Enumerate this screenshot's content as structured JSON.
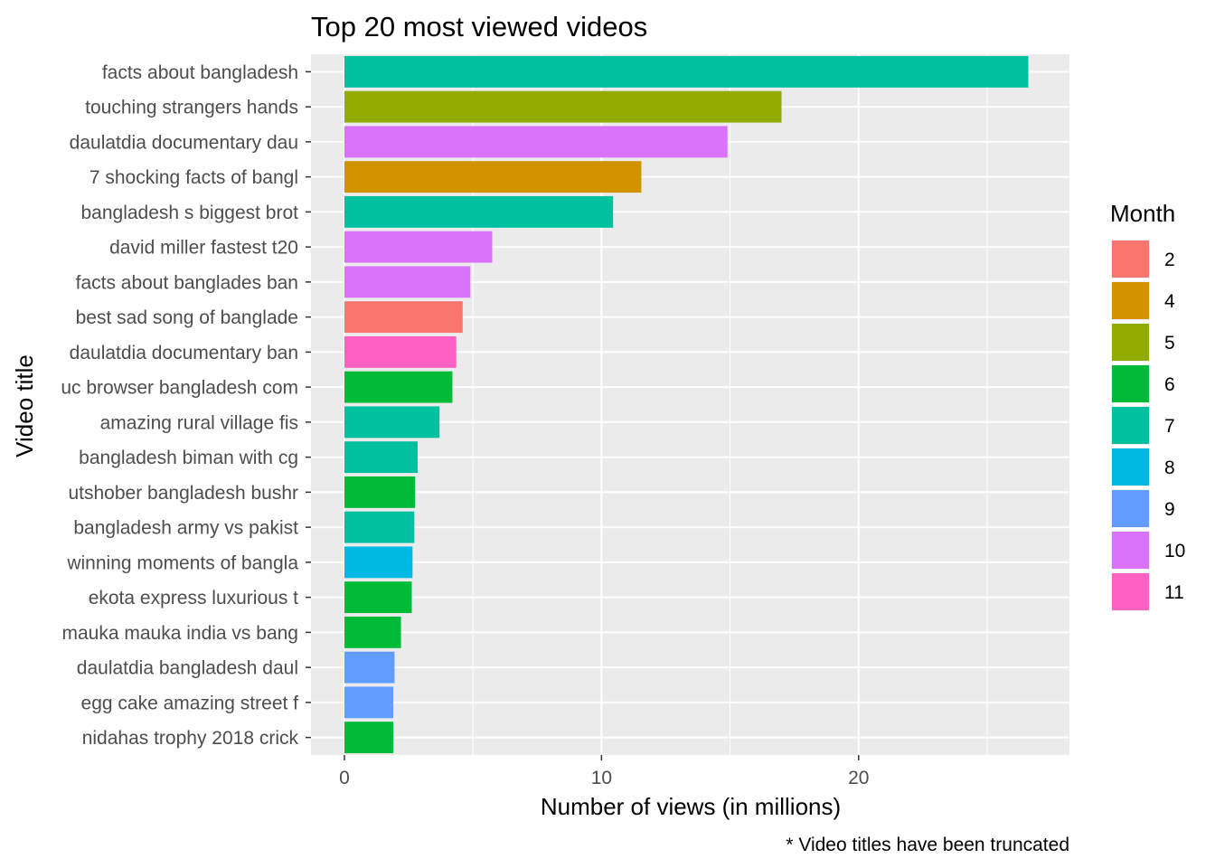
{
  "chart_data": {
    "type": "bar",
    "orientation": "horizontal",
    "title": "Top 20 most viewed videos",
    "xlabel": "Number of views (in millions)",
    "ylabel": "Video title",
    "caption": "* Video titles have been truncated",
    "xlim": [
      -1.3,
      28.2
    ],
    "xticks": [
      0,
      10,
      20
    ],
    "xtick_labels": [
      "0",
      "10",
      "20"
    ],
    "grid": true,
    "legend": {
      "title": "Month",
      "placement": "right",
      "entries": [
        {
          "label": "2",
          "color": "#F8766D"
        },
        {
          "label": "4",
          "color": "#D39200"
        },
        {
          "label": "5",
          "color": "#93AA00"
        },
        {
          "label": "6",
          "color": "#00BA38"
        },
        {
          "label": "7",
          "color": "#00C19F"
        },
        {
          "label": "8",
          "color": "#00B9E3"
        },
        {
          "label": "9",
          "color": "#619CFF"
        },
        {
          "label": "10",
          "color": "#DB72FB"
        },
        {
          "label": "11",
          "color": "#FF61C3"
        }
      ]
    },
    "categories": [
      "facts about bangladesh",
      "touching strangers hands ",
      "daulatdia documentary dau",
      "7 shocking facts of bangl",
      "bangladesh s biggest brot",
      "david miller fastest t20 ",
      "facts about banglades ban",
      "best sad song of banglade",
      "daulatdia documentary ban",
      "uc browser bangladesh com",
      "amazing rural village fis",
      "bangladesh biman with cg ",
      "utshober bangladesh bushr",
      "bangladesh army vs pakist",
      "winning moments of bangla",
      "ekota express luxurious t",
      "mauka mauka india vs bang",
      "daulatdia bangladesh daul",
      "egg cake amazing street f",
      "nidahas trophy 2018 crick"
    ],
    "values": [
      26.6,
      17.0,
      14.9,
      11.55,
      10.45,
      5.75,
      4.9,
      4.6,
      4.35,
      4.2,
      3.7,
      2.85,
      2.75,
      2.72,
      2.65,
      2.62,
      2.2,
      1.95,
      1.9,
      1.9
    ],
    "months": [
      "7",
      "5",
      "10",
      "4",
      "7",
      "10",
      "10",
      "2",
      "11",
      "6",
      "7",
      "7",
      "6",
      "7",
      "8",
      "6",
      "6",
      "9",
      "9",
      "6"
    ]
  }
}
